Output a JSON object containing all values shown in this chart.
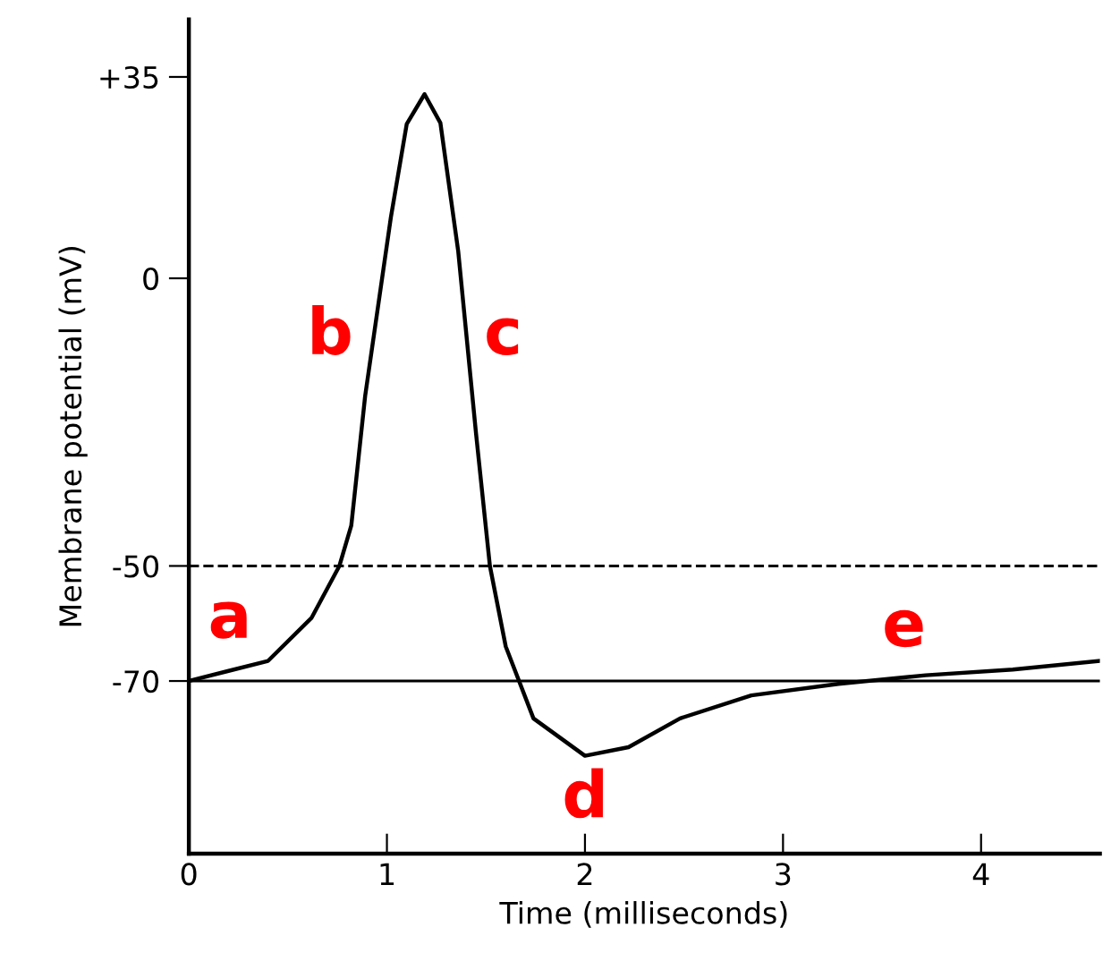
{
  "chart_data": {
    "type": "line",
    "xlabel": "Time (milliseconds)",
    "ylabel": "Membrane potential (mV)",
    "series": [
      {
        "color": "#000000",
        "x": [
          0,
          0.4,
          0.62,
          0.76,
          0.82,
          0.89,
          1.02,
          1.1,
          1.19,
          1.27,
          1.36,
          1.45,
          1.52,
          1.6,
          1.74,
          2.0,
          2.22,
          2.48,
          2.84,
          3.28,
          3.72,
          4.16,
          4.6
        ],
        "values": [
          -70,
          -66.5,
          -59,
          -50,
          -43,
          -20.5,
          10.6,
          26.8,
          32,
          27,
          4.7,
          -27,
          -50,
          -64,
          -76.5,
          -83,
          -81.5,
          -76.5,
          -72.5,
          -70.5,
          -69,
          -68,
          -66.5
        ]
      }
    ],
    "xlim": [
      0,
      4.6
    ],
    "xticks": [
      0,
      1,
      2,
      3,
      4
    ],
    "ylim": [
      -100,
      45
    ],
    "yticks": [
      {
        "value": 35,
        "label": "+35"
      },
      0,
      -50,
      -70
    ],
    "ref_lines": [
      {
        "axis": "y",
        "value": -70,
        "color": "#000000",
        "line_style": "solid"
      },
      {
        "axis": "y",
        "value": -50,
        "color": "#000000",
        "line_style": "dashed"
      }
    ],
    "annotations": [
      "a",
      "b",
      "c",
      "d",
      "e"
    ],
    "grid": false,
    "legend": false,
    "marker": "none",
    "line_style": "solid"
  }
}
